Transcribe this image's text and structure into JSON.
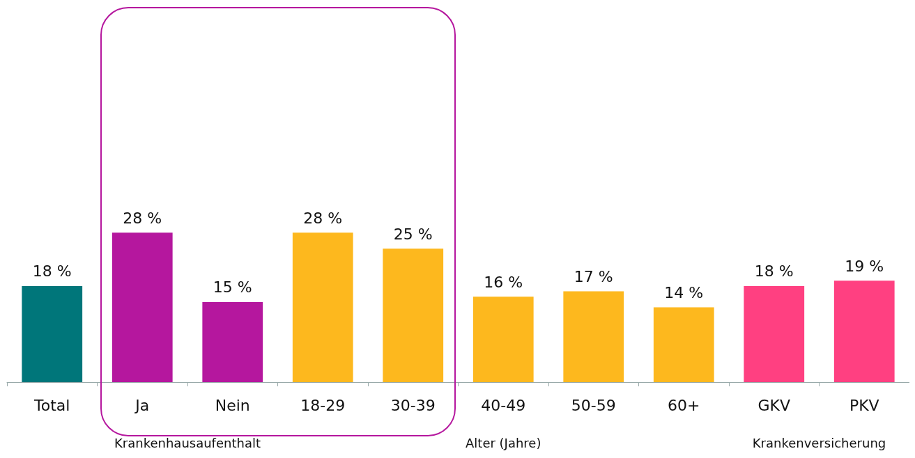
{
  "chart_data": {
    "type": "bar",
    "categories": [
      "Total",
      "Ja",
      "Nein",
      "18-29",
      "30-39",
      "40-49",
      "50-59",
      "60+",
      "GKV",
      "PKV"
    ],
    "values": [
      18,
      28,
      15,
      28,
      25,
      16,
      17,
      14,
      18,
      19
    ],
    "colors": [
      "#00767a",
      "#b5179e",
      "#b5179e",
      "#fdb81e",
      "#fdb81e",
      "#fdb81e",
      "#fdb81e",
      "#fdb81e",
      "#ff4081",
      "#ff4081"
    ],
    "value_labels": [
      "18 %",
      "28 %",
      "15 %",
      "28 %",
      "25 %",
      "16 %",
      "17 %",
      "14 %",
      "18 %",
      "19 %"
    ],
    "annotations": [
      "Krankenhausaufenthalt",
      "Alter (Jahre)",
      "Krankenversicherung"
    ]
  }
}
